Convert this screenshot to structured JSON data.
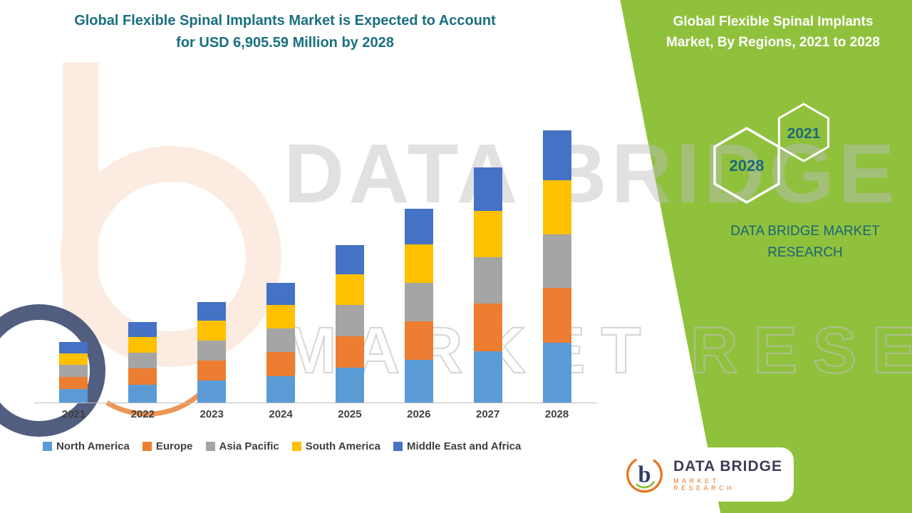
{
  "header": {
    "title_line1": "Global Flexible Spinal Implants Market is Expected to Account",
    "title_line2": "for USD 6,905.59 Million by 2028"
  },
  "side_panel": {
    "title_line1": "Global Flexible Spinal Implants",
    "title_line2": "Market, By Regions, 2021 to 2028",
    "hex_year_start": "2028",
    "hex_year_end": "2021",
    "brand_line1": "DATA BRIDGE MARKET",
    "brand_line2": "RESEARCH",
    "panel_color": "#90c13d",
    "accent_teal": "#1b6a78"
  },
  "watermark": {
    "line1": "DATA BRIDGE",
    "line2": "MARKET RESEARCH"
  },
  "footer_logo": {
    "name_text": "DATA BRIDGE",
    "sub_text": "MARKET RESEARCH"
  },
  "chart_data": {
    "type": "bar",
    "stacked": true,
    "title": "Global Flexible Spinal Implants Market, By Regions, 2021 to 2028",
    "unit": "USD Million",
    "categories": [
      "2021",
      "2022",
      "2023",
      "2024",
      "2025",
      "2026",
      "2027",
      "2028"
    ],
    "series": [
      {
        "name": "North America",
        "color": "#5B9BD5",
        "values": [
          340,
          450,
          560,
          670,
          880,
          1080,
          1310,
          1520
        ]
      },
      {
        "name": "Europe",
        "color": "#ED7D31",
        "values": [
          310,
          410,
          510,
          610,
          800,
          985,
          1195,
          1385
        ]
      },
      {
        "name": "Asia Pacific",
        "color": "#A5A5A5",
        "values": [
          305,
          405,
          505,
          600,
          790,
          975,
          1185,
          1370
        ]
      },
      {
        "name": "South America",
        "color": "#FFC000",
        "values": [
          300,
          400,
          500,
          595,
          785,
          970,
          1175,
          1360
        ]
      },
      {
        "name": "Middle East and Africa",
        "color": "#4472C4",
        "values": [
          285,
          380,
          475,
          565,
          740,
          915,
          1105,
          1270.59
        ]
      }
    ],
    "totals_note": "2028 total equals 6905.59 USD Million",
    "xlabel": "",
    "ylabel": "",
    "ylim": [
      0,
      6905.59
    ],
    "grid": false,
    "legend_position": "bottom"
  }
}
